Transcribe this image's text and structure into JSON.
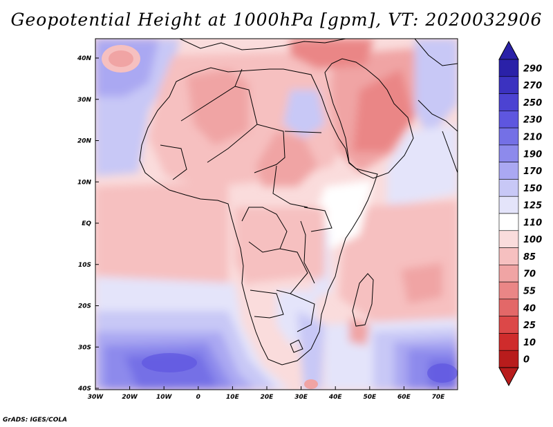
{
  "title": "Geopotential Height at 1000hPa [gpm], VT: 2020032906",
  "credit": "GrADS: IGES/COLA",
  "map": {
    "lon_labels": [
      "30W",
      "20W",
      "10W",
      "0",
      "10E",
      "20E",
      "30E",
      "40E",
      "50E",
      "60E",
      "70E"
    ],
    "lat_labels": [
      "40N",
      "30N",
      "20N",
      "10N",
      "EQ",
      "10S",
      "20S",
      "30S",
      "40S"
    ]
  },
  "colorbar": {
    "labels": [
      "290",
      "270",
      "250",
      "230",
      "210",
      "190",
      "170",
      "150",
      "125",
      "110",
      "100",
      "85",
      "70",
      "55",
      "40",
      "25",
      "10",
      "0"
    ],
    "colors": [
      "#2a21a8",
      "#3b32c0",
      "#4c43d2",
      "#5e56df",
      "#7470e6",
      "#8d8aec",
      "#aaa8f2",
      "#c8c8f6",
      "#e4e4fa",
      "#ffffff",
      "#fadcdc",
      "#f6c0c0",
      "#f0a4a4",
      "#ea8686",
      "#e36868",
      "#dc4848",
      "#cf2c2c",
      "#b81c1c"
    ]
  }
}
